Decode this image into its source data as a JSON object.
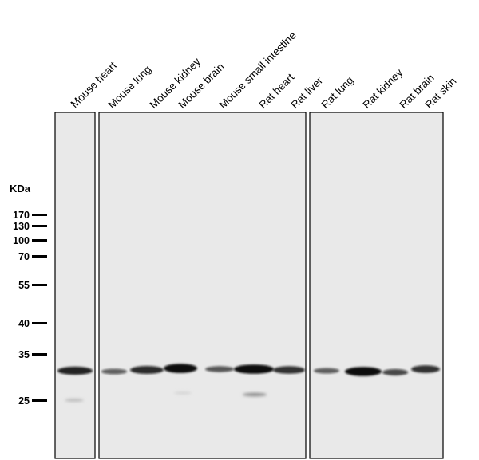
{
  "kda_title": "KDa",
  "markers": [
    {
      "label": "170",
      "kda": 170
    },
    {
      "label": "130",
      "kda": 130
    },
    {
      "label": "100",
      "kda": 100
    },
    {
      "label": "70",
      "kda": 70
    },
    {
      "label": "55",
      "kda": 55
    },
    {
      "label": "40",
      "kda": 40
    },
    {
      "label": "35",
      "kda": 35
    },
    {
      "label": "25",
      "kda": 25
    }
  ],
  "lanes": [
    {
      "label": "Mouse heart",
      "panel": 1,
      "band_intensity": 0.85
    },
    {
      "label": "Mouse lung",
      "panel": 2,
      "band_intensity": 0.45
    },
    {
      "label": "Mouse kidney",
      "panel": 2,
      "band_intensity": 0.8
    },
    {
      "label": "Mouse brain",
      "panel": 2,
      "band_intensity": 1.0
    },
    {
      "label": "Mouse small intestine",
      "panel": 2,
      "band_intensity": 0.5
    },
    {
      "label": "Rat heart",
      "panel": 2,
      "band_intensity": 1.0
    },
    {
      "label": "Rat liver",
      "panel": 2,
      "band_intensity": 0.75
    },
    {
      "label": "Rat lung",
      "panel": 3,
      "band_intensity": 0.45
    },
    {
      "label": "Rat kidney",
      "panel": 3,
      "band_intensity": 1.0
    },
    {
      "label": "Rat brain",
      "panel": 3,
      "band_intensity": 0.6
    },
    {
      "label": "Rat skin",
      "panel": 3,
      "band_intensity": 0.75
    }
  ],
  "colors": {
    "membrane": "#e9e9e9",
    "band": "#0d0d0d",
    "border": "#000000"
  }
}
